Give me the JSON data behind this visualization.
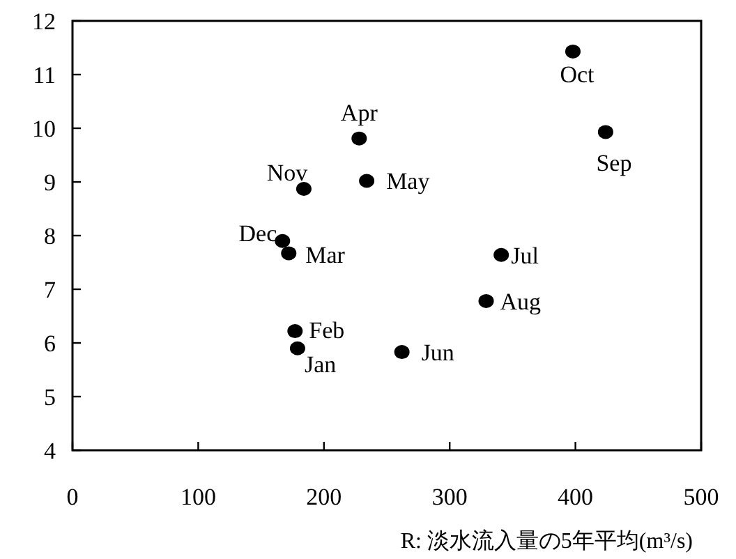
{
  "chart_data": {
    "type": "scatter",
    "xlabel": "R: 淡水流入量の5年平均(m³/s)",
    "x": [
      179,
      177,
      172,
      228,
      234,
      262,
      341,
      329,
      424,
      398,
      184,
      167
    ],
    "series": [
      {
        "color": "#000000",
        "values": [
          5.9,
          6.22,
          7.67,
          9.81,
          9.02,
          5.83,
          7.64,
          6.78,
          9.93,
          11.43,
          8.87,
          7.9
        ]
      }
    ],
    "marker": "circle",
    "grid": false,
    "xlim": [
      0,
      500
    ],
    "xticks": [
      0,
      100,
      200,
      300,
      400,
      500
    ],
    "ylim": [
      4,
      12
    ],
    "yticks": [
      4,
      5,
      6,
      7,
      8,
      9,
      10,
      11,
      12
    ],
    "annotations": [
      {
        "text": "Jan",
        "x": 179,
        "y": 5.9
      },
      {
        "text": "Feb",
        "x": 177,
        "y": 6.22
      },
      {
        "text": "Mar",
        "x": 172,
        "y": 7.67
      },
      {
        "text": "Apr",
        "x": 228,
        "y": 9.81
      },
      {
        "text": "May",
        "x": 234,
        "y": 9.02
      },
      {
        "text": "Jun",
        "x": 262,
        "y": 5.83
      },
      {
        "text": "Jul",
        "x": 341,
        "y": 7.64
      },
      {
        "text": "Aug",
        "x": 329,
        "y": 6.78
      },
      {
        "text": "Sep",
        "x": 424,
        "y": 9.93
      },
      {
        "text": "Oct",
        "x": 398,
        "y": 11.43
      },
      {
        "text": "Nov",
        "x": 184,
        "y": 8.87
      },
      {
        "text": "Dec",
        "x": 167,
        "y": 7.9
      }
    ]
  }
}
